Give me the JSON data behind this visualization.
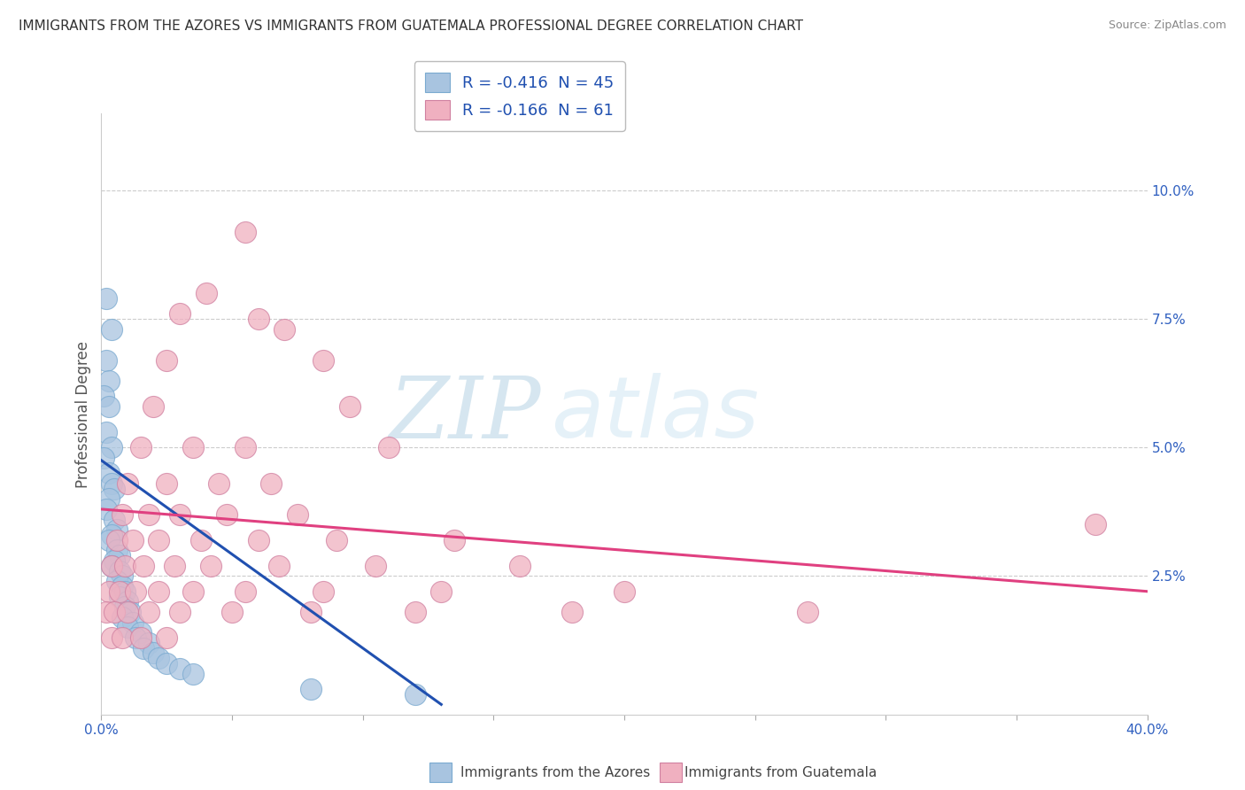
{
  "title": "IMMIGRANTS FROM THE AZORES VS IMMIGRANTS FROM GUATEMALA PROFESSIONAL DEGREE CORRELATION CHART",
  "source": "Source: ZipAtlas.com",
  "ylabel": "Professional Degree",
  "ylabel_right_ticks": [
    "10.0%",
    "7.5%",
    "5.0%",
    "2.5%"
  ],
  "ylabel_right_vals": [
    0.1,
    0.075,
    0.05,
    0.025
  ],
  "xlim": [
    0.0,
    0.4
  ],
  "ylim": [
    -0.002,
    0.115
  ],
  "legend1_label": "R = -0.416  N = 45",
  "legend2_label": "R = -0.166  N = 61",
  "bottom_label1": "Immigrants from the Azores",
  "bottom_label2": "Immigrants from Guatemala",
  "azores_color": "#a8c4e0",
  "guatemala_color": "#f0b0c0",
  "azores_line_color": "#2050b0",
  "guatemala_line_color": "#e04080",
  "watermark_zip": "ZIP",
  "watermark_atlas": "atlas",
  "background_color": "#ffffff",
  "grid_color": "#cccccc",
  "azores_x": [
    0.002,
    0.004,
    0.002,
    0.003,
    0.001,
    0.003,
    0.002,
    0.004,
    0.001,
    0.003,
    0.004,
    0.005,
    0.003,
    0.002,
    0.005,
    0.006,
    0.004,
    0.003,
    0.006,
    0.007,
    0.005,
    0.004,
    0.007,
    0.008,
    0.006,
    0.008,
    0.009,
    0.007,
    0.01,
    0.009,
    0.011,
    0.008,
    0.012,
    0.01,
    0.015,
    0.013,
    0.018,
    0.016,
    0.02,
    0.022,
    0.025,
    0.03,
    0.035,
    0.08,
    0.12
  ],
  "azores_y": [
    0.079,
    0.073,
    0.067,
    0.063,
    0.06,
    0.058,
    0.053,
    0.05,
    0.048,
    0.045,
    0.043,
    0.042,
    0.04,
    0.038,
    0.036,
    0.034,
    0.033,
    0.032,
    0.03,
    0.029,
    0.028,
    0.027,
    0.026,
    0.025,
    0.024,
    0.023,
    0.022,
    0.021,
    0.02,
    0.019,
    0.018,
    0.017,
    0.016,
    0.015,
    0.014,
    0.013,
    0.012,
    0.011,
    0.01,
    0.009,
    0.008,
    0.007,
    0.006,
    0.003,
    0.002
  ],
  "guatemala_x": [
    0.055,
    0.04,
    0.03,
    0.06,
    0.07,
    0.025,
    0.085,
    0.02,
    0.095,
    0.015,
    0.035,
    0.055,
    0.11,
    0.01,
    0.025,
    0.045,
    0.065,
    0.008,
    0.018,
    0.03,
    0.048,
    0.075,
    0.006,
    0.012,
    0.022,
    0.038,
    0.06,
    0.09,
    0.135,
    0.004,
    0.009,
    0.016,
    0.028,
    0.042,
    0.068,
    0.105,
    0.16,
    0.003,
    0.007,
    0.013,
    0.022,
    0.035,
    0.055,
    0.085,
    0.13,
    0.2,
    0.002,
    0.005,
    0.01,
    0.018,
    0.03,
    0.05,
    0.08,
    0.12,
    0.18,
    0.27,
    0.004,
    0.008,
    0.015,
    0.025,
    0.38
  ],
  "guatemala_y": [
    0.092,
    0.08,
    0.076,
    0.075,
    0.073,
    0.067,
    0.067,
    0.058,
    0.058,
    0.05,
    0.05,
    0.05,
    0.05,
    0.043,
    0.043,
    0.043,
    0.043,
    0.037,
    0.037,
    0.037,
    0.037,
    0.037,
    0.032,
    0.032,
    0.032,
    0.032,
    0.032,
    0.032,
    0.032,
    0.027,
    0.027,
    0.027,
    0.027,
    0.027,
    0.027,
    0.027,
    0.027,
    0.022,
    0.022,
    0.022,
    0.022,
    0.022,
    0.022,
    0.022,
    0.022,
    0.022,
    0.018,
    0.018,
    0.018,
    0.018,
    0.018,
    0.018,
    0.018,
    0.018,
    0.018,
    0.018,
    0.013,
    0.013,
    0.013,
    0.013,
    0.035
  ],
  "az_line_x0": 0.0,
  "az_line_x1": 0.13,
  "az_line_y0": 0.0475,
  "az_line_y1": 0.0,
  "gt_line_x0": 0.0,
  "gt_line_x1": 0.4,
  "gt_line_y0": 0.038,
  "gt_line_y1": 0.022
}
